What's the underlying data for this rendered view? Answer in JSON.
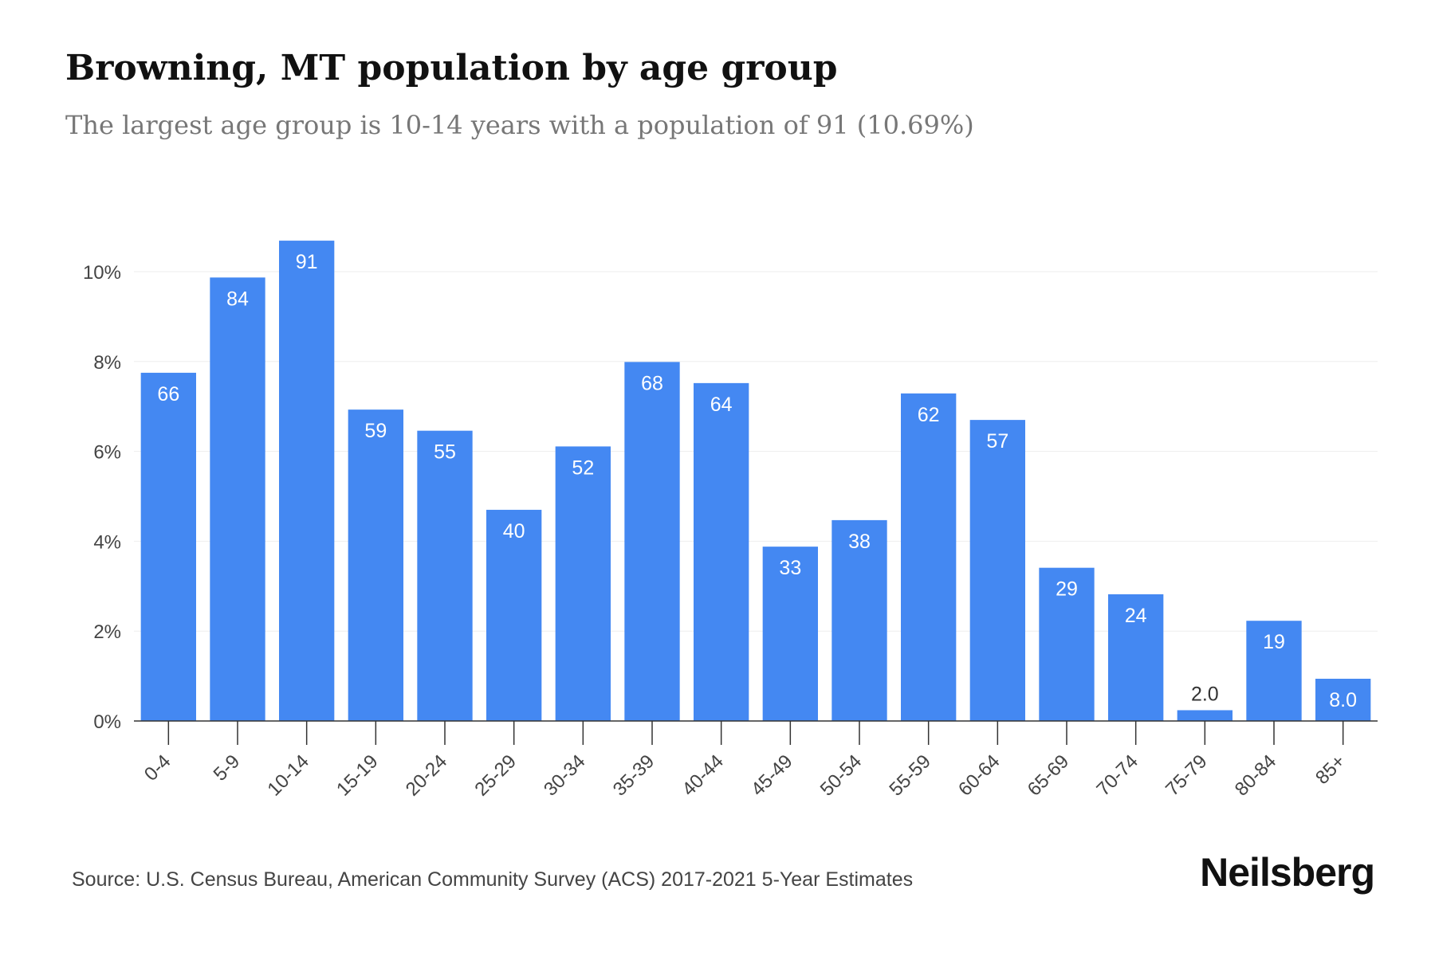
{
  "header": {
    "title": "Browning, MT population by age group",
    "subtitle": "The largest age group is 10-14 years with a population of 91 (10.69%)"
  },
  "footer": {
    "source": "Source: U.S. Census Bureau, American Community Survey (ACS) 2017-2021 5-Year Estimates",
    "brand": "Neilsberg"
  },
  "colors": {
    "bar": "#4488f2",
    "bar_label": "#ffffff",
    "outside_label": "#333333",
    "grid": "#eeeeee",
    "axis": "#333333",
    "tick_label": "#444444"
  },
  "chart_data": {
    "type": "bar",
    "categories": [
      "0-4",
      "5-9",
      "10-14",
      "15-19",
      "20-24",
      "25-29",
      "30-34",
      "35-39",
      "40-44",
      "45-49",
      "50-54",
      "55-59",
      "60-64",
      "65-69",
      "70-74",
      "75-79",
      "80-84",
      "85+"
    ],
    "values": [
      7.75,
      9.87,
      10.69,
      6.93,
      6.46,
      4.7,
      6.11,
      7.99,
      7.52,
      3.88,
      4.47,
      7.29,
      6.7,
      3.41,
      2.82,
      0.24,
      2.23,
      0.94
    ],
    "data_labels": [
      "66",
      "84",
      "91",
      "59",
      "55",
      "40",
      "52",
      "68",
      "64",
      "33",
      "38",
      "62",
      "57",
      "29",
      "24",
      "2.0",
      "19",
      "8.0"
    ],
    "title": "Browning, MT population by age group",
    "subtitle": "The largest age group is 10-14 years with a population of 91 (10.69%)",
    "xlabel": "",
    "ylabel": "",
    "ylim": [
      0,
      10
    ],
    "yticks": [
      0,
      2,
      4,
      6,
      8,
      10
    ],
    "ytick_labels": [
      "0%",
      "2%",
      "4%",
      "6%",
      "8%",
      "10%"
    ],
    "grid": true,
    "legend": "none"
  }
}
